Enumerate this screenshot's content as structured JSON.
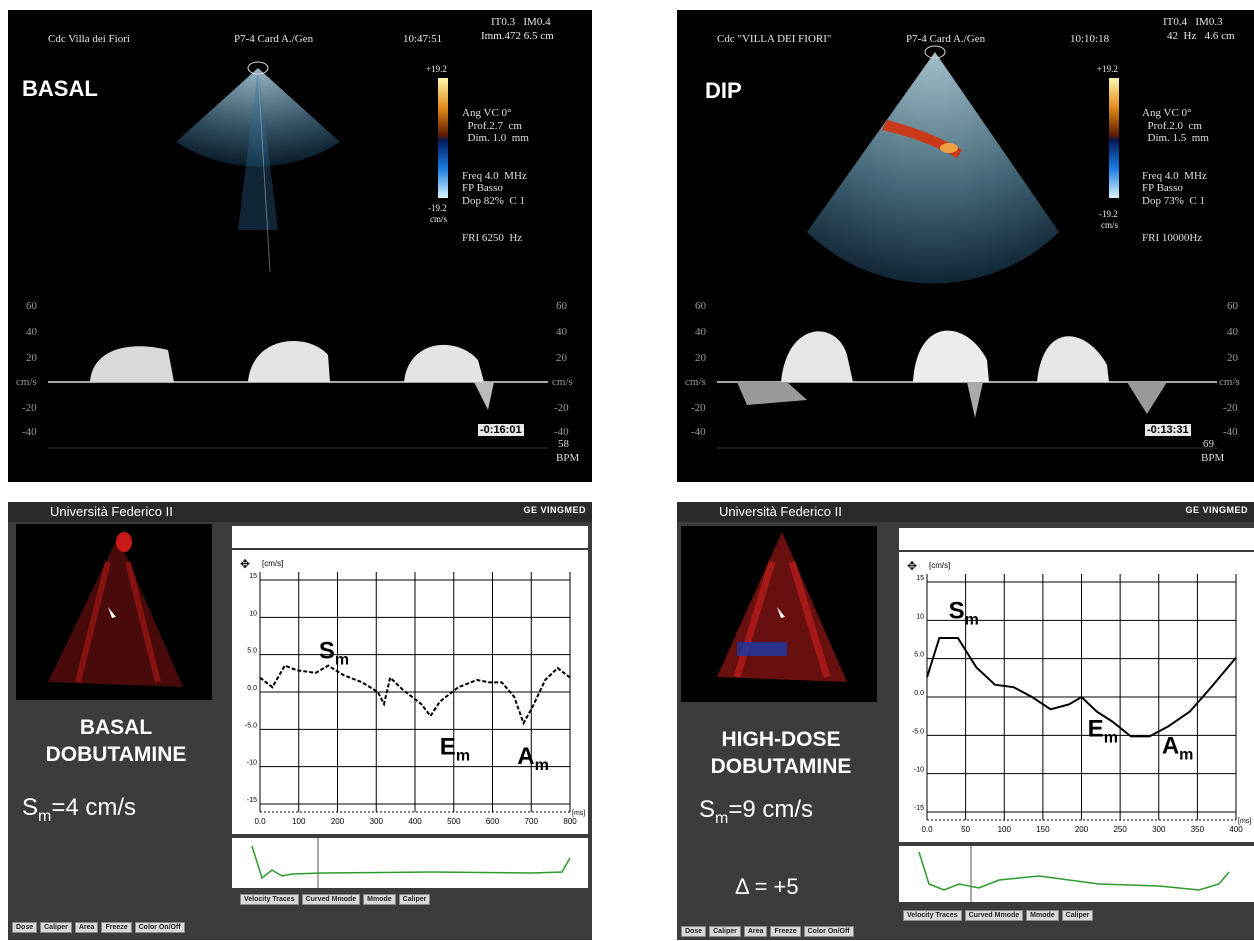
{
  "top_left": {
    "header_left": "Cdc Villa dei Fiori",
    "header_probe": "P7-4 Card A./Gen",
    "header_time": "10:47:51",
    "header_right_1": "IT0.3   IM0.4",
    "header_right_2": "Imm.472 6.5 cm",
    "label": "BASAL",
    "scale_top": "+19.2",
    "scale_bottom": "-19.2",
    "scale_unit": "cm/s",
    "settings": [
      "Ang VC 0°",
      "  Prof.2.7  cm",
      "  Dim. 1.0  mm",
      "Freq 4.0  MHz",
      "FP Basso",
      "Dop 82%  C 1",
      "FRI 6250  Hz"
    ],
    "ticks_left": [
      "60",
      "40",
      "20",
      "cm/s",
      "-20",
      "-40"
    ],
    "ticks_right": [
      "60",
      "40",
      "20",
      "cm/s",
      "-20",
      "-40"
    ],
    "timer": "-0:16:01",
    "bpm_value": "58",
    "bpm_unit": "BPM"
  },
  "top_right": {
    "header_left": "Cdc \"VILLA DEI FIORI\"",
    "header_probe": "P7-4 Card A./Gen",
    "header_time": "10:10:18",
    "header_right_1": "IT0.4   IM0.3",
    "header_right_2": "42  Hz   4.6 cm",
    "label": "DIP",
    "scale_top": "+19.2",
    "scale_bottom": "-19.2",
    "scale_unit": "cm/s",
    "settings": [
      "Ang VC 0°",
      "  Prof.2.0  cm",
      "  Dim. 1.5  mm",
      "Freq 4.0  MHz",
      "FP Basso",
      "Dop 73%  C 1",
      "FRI 10000Hz"
    ],
    "ticks_left": [
      "60",
      "40",
      "20",
      "cm/s",
      "-20",
      "-40"
    ],
    "ticks_right": [
      "60",
      "40",
      "20",
      "cm/s",
      "-20",
      "-40"
    ],
    "timer": "-0:13:31",
    "bpm_value": "69",
    "bpm_unit": "BPM"
  },
  "bottom_left": {
    "header": "Università Federico II",
    "brand": "GE VINGMED",
    "mode_line1": "BASAL",
    "mode_line2": "DOBUTAMINE",
    "sm_text": "Sm=4 cm/s",
    "sm_base": "S",
    "sm_sub": "m",
    "sm_rest": "=4 cm/s",
    "y_unit": "[cm/s]",
    "x_unit": "[ms]",
    "y_ticks": [
      "15",
      "10",
      "5.0",
      "0.0",
      "-5.0",
      "-10",
      "-15"
    ],
    "x_ticks": [
      "0.0",
      "100",
      "200",
      "300",
      "400",
      "500",
      "600",
      "700",
      "800"
    ],
    "ann_s": "S",
    "ann_e": "E",
    "ann_a": "A",
    "ann_sub": "m",
    "buttons_top": [
      "Velocity Traces",
      "Curved Mmode",
      "Mmode",
      "Caliper"
    ],
    "buttons_bottom": [
      "Dose",
      "Caliper",
      "Area",
      "Freeze",
      "Color On/Off"
    ]
  },
  "bottom_right": {
    "header": "Università Federico II",
    "brand": "GE VINGMED",
    "mode_line1": "HIGH-DOSE",
    "mode_line2": "DOBUTAMINE",
    "sm_base": "S",
    "sm_sub": "m",
    "sm_rest": "=9 cm/s",
    "delta": "Δ = +5",
    "y_unit": "[cm/s]",
    "x_unit": "[ms]",
    "y_ticks": [
      "15",
      "10",
      "5.0",
      "0.0",
      "-5.0",
      "-10",
      "-15"
    ],
    "x_ticks": [
      "0.0",
      "50",
      "100",
      "150",
      "200",
      "250",
      "300",
      "350",
      "400"
    ],
    "ann_s": "S",
    "ann_e": "E",
    "ann_a": "A",
    "ann_sub": "m",
    "buttons_top": [
      "Velocity Traces",
      "Curved Mmode",
      "Mmode",
      "Caliper"
    ],
    "buttons_bottom": [
      "Dose",
      "Caliper",
      "Area",
      "Freeze",
      "Color On/Off"
    ]
  },
  "colors": {
    "curve": "#000000",
    "ecg": "#2e9a2e",
    "doppler_flow": "#c83a1a"
  }
}
